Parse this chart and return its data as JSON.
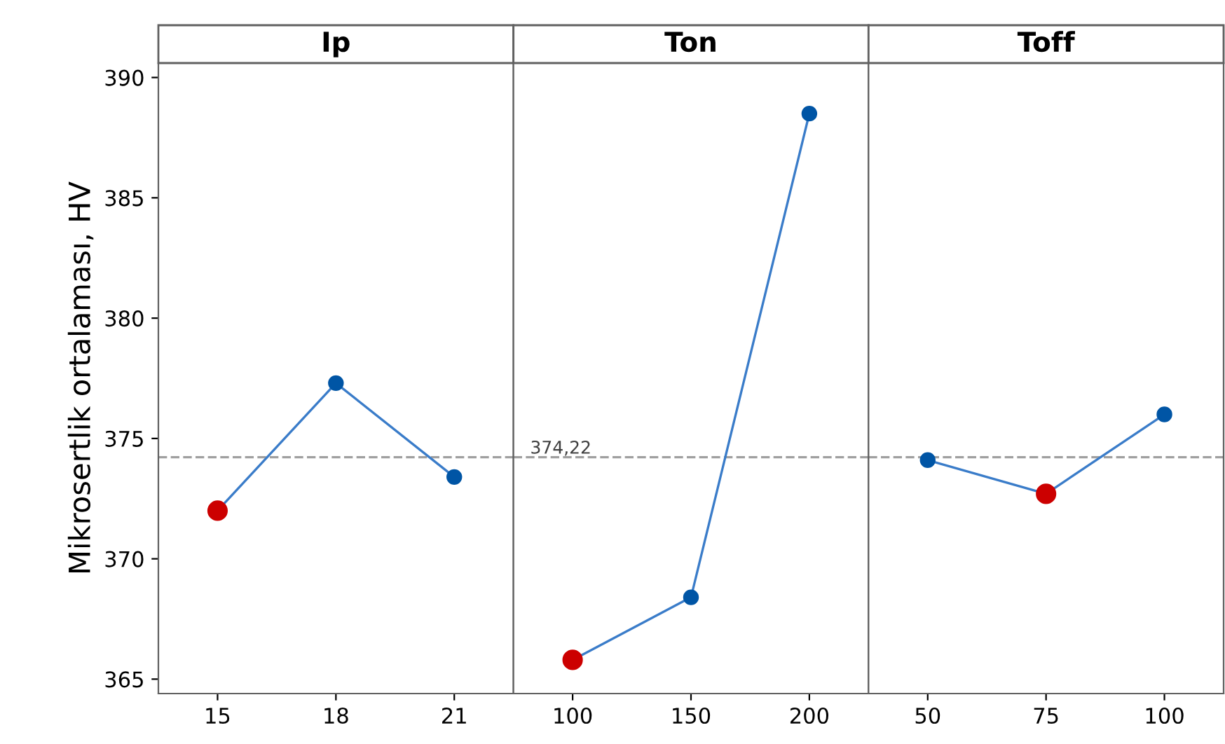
{
  "chart_data": [
    {
      "type": "line",
      "title": "Ip",
      "ylabel": "Mikrosertlik ortalaması, HV",
      "categories": [
        "15",
        "18",
        "21"
      ],
      "series": [
        {
          "color": "#3a7cc9",
          "colors": [
            "#cc0000",
            "#0055a5",
            "#0055a5"
          ],
          "values": [
            372.0,
            377.3,
            373.4
          ]
        }
      ],
      "ylim": [
        364.4,
        390.6
      ],
      "yticks": [
        365,
        370,
        375,
        380,
        385,
        390
      ],
      "ref_lines": [
        {
          "axis": "y",
          "value": 374.22,
          "color": "#a0a0a0",
          "line_style": "dashed"
        }
      ],
      "marker": "circle",
      "grid": false
    },
    {
      "type": "line",
      "title": "Ton",
      "categories": [
        "100",
        "150",
        "200"
      ],
      "series": [
        {
          "color": "#3a7cc9",
          "colors": [
            "#cc0000",
            "#0055a5",
            "#0055a5"
          ],
          "values": [
            365.8,
            368.4,
            388.5
          ]
        }
      ],
      "ylim": [
        364.4,
        390.6
      ],
      "tick_labels": "x",
      "ref_lines": [
        {
          "axis": "y",
          "value": 374.22,
          "label": "374,22",
          "color": "#a0a0a0",
          "line_style": "dashed"
        }
      ],
      "marker": "circle",
      "grid": false
    },
    {
      "type": "line",
      "title": "Toff",
      "categories": [
        "50",
        "75",
        "100"
      ],
      "series": [
        {
          "color": "#3a7cc9",
          "colors": [
            "#0055a5",
            "#cc0000",
            "#0055a5"
          ],
          "values": [
            374.1,
            372.7,
            376.0
          ]
        }
      ],
      "ylim": [
        364.4,
        390.6
      ],
      "tick_labels": "x",
      "ref_lines": [
        {
          "axis": "y",
          "value": 374.22,
          "color": "#a0a0a0",
          "line_style": "dashed"
        }
      ],
      "marker": "circle",
      "grid": false
    }
  ]
}
